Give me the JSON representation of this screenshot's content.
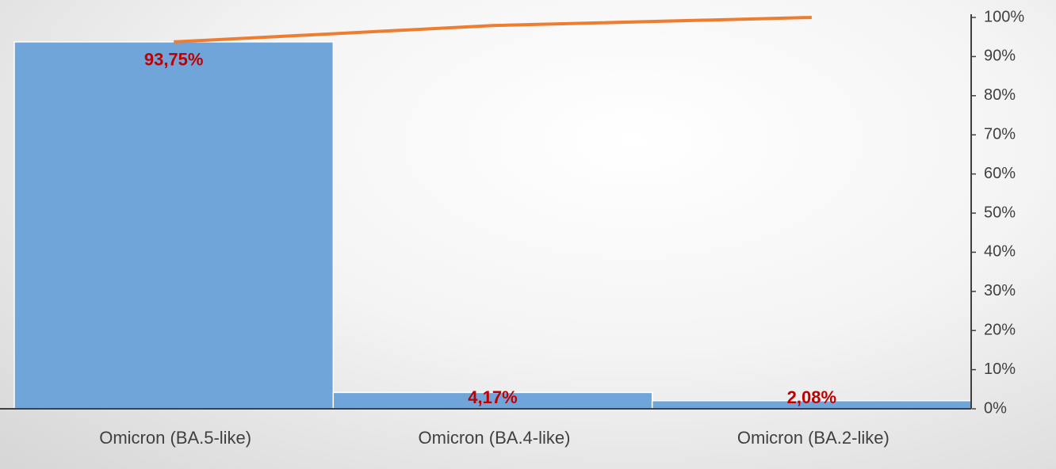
{
  "chart_data": {
    "type": "pareto",
    "categories": [
      "Omicron (BA.5-like)",
      "Omicron (BA.4-like)",
      "Omicron (BA.2-like)"
    ],
    "series": [
      {
        "type": "bar",
        "color": "#6fa5d8",
        "values": [
          93.75,
          4.17,
          2.08
        ],
        "value_labels": [
          "93,75%",
          "4,17%",
          "2,08%"
        ],
        "label_color": "#c00000"
      },
      {
        "type": "line",
        "color": "#ed7d31",
        "values": [
          93.75,
          97.92,
          100
        ]
      }
    ],
    "ylim": [
      0,
      100
    ],
    "yticks": [
      {
        "value": 0,
        "label": "0%"
      },
      {
        "value": 10,
        "label": "10%"
      },
      {
        "value": 20,
        "label": "20%"
      },
      {
        "value": 30,
        "label": "30%"
      },
      {
        "value": 40,
        "label": "40%"
      },
      {
        "value": 50,
        "label": "50%"
      },
      {
        "value": 60,
        "label": "60%"
      },
      {
        "value": 70,
        "label": "70%"
      },
      {
        "value": 80,
        "label": "80%"
      },
      {
        "value": 90,
        "label": "90%"
      },
      {
        "value": 100,
        "label": "100%"
      }
    ],
    "y_axis_side": "right"
  }
}
